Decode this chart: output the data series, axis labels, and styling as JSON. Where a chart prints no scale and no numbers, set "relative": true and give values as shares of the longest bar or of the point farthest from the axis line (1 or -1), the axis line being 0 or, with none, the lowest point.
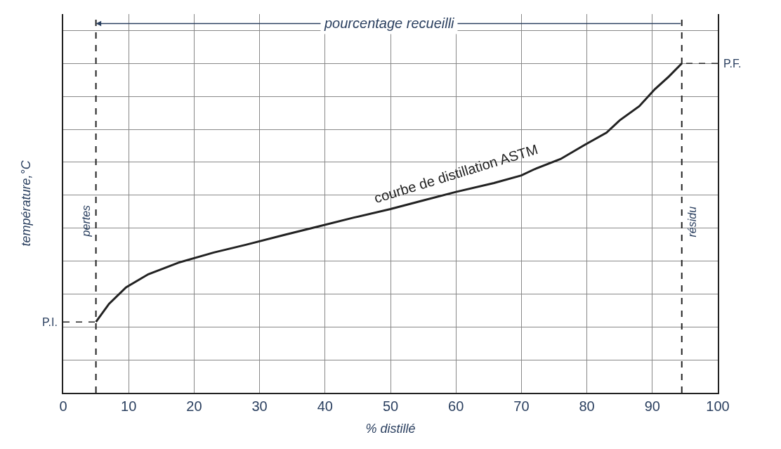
{
  "chart_data": {
    "type": "line",
    "relative": true,
    "xlabel": "% distillé",
    "ylabel": "température,°C",
    "xlim": [
      0,
      100
    ],
    "xticks": [
      0,
      10,
      20,
      30,
      40,
      50,
      60,
      70,
      80,
      90,
      100
    ],
    "grid": true,
    "line_style": "solid",
    "marker": "none",
    "series": [
      {
        "name": "courbe de distillation ASTM",
        "color": "#222222",
        "x": [
          5,
          7,
          9.6,
          13,
          17.6,
          23,
          28,
          33.7,
          39,
          44.4,
          50,
          55,
          60,
          65.8,
          70,
          72,
          76,
          79.7,
          83,
          85,
          88,
          90.4,
          92.5,
          94.5
        ],
        "values": [
          0.215,
          0.27,
          0.32,
          0.36,
          0.395,
          0.426,
          0.45,
          0.479,
          0.505,
          0.532,
          0.558,
          0.584,
          0.61,
          0.637,
          0.66,
          0.679,
          0.71,
          0.753,
          0.79,
          0.827,
          0.87,
          0.922,
          0.96,
          1.0
        ]
      }
    ],
    "ref_lines": [
      {
        "axis": "x",
        "value": 5,
        "label": "pertes",
        "line_style": "dashed",
        "color": "#222222"
      },
      {
        "axis": "x",
        "value": 94.5,
        "label": "résidu",
        "line_style": "dashed",
        "color": "#222222"
      }
    ],
    "annotations": [
      "P.I.",
      "P.F.",
      "pourcentage recueilli"
    ]
  }
}
